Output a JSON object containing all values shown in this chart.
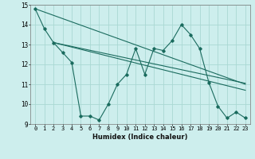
{
  "xlabel": "Humidex (Indice chaleur)",
  "background_color": "#cdeeed",
  "line_color": "#1a6b5e",
  "grid_color": "#aad8d3",
  "xlim": [
    -0.5,
    23.5
  ],
  "ylim": [
    9,
    15
  ],
  "yticks": [
    9,
    10,
    11,
    12,
    13,
    14,
    15
  ],
  "xticks": [
    0,
    1,
    2,
    3,
    4,
    5,
    6,
    7,
    8,
    9,
    10,
    11,
    12,
    13,
    14,
    15,
    16,
    17,
    18,
    19,
    20,
    21,
    22,
    23
  ],
  "main_y": [
    14.8,
    13.8,
    13.1,
    12.6,
    12.1,
    9.4,
    9.4,
    9.2,
    10.0,
    11.0,
    11.5,
    12.8,
    11.5,
    12.8,
    12.7,
    13.2,
    14.0,
    13.5,
    12.8,
    11.1,
    9.9,
    9.3,
    9.6,
    9.3
  ],
  "line1_x": [
    0,
    23
  ],
  "line1_y": [
    14.8,
    11.0
  ],
  "line2_x": [
    2,
    23
  ],
  "line2_y": [
    13.1,
    11.05
  ],
  "line3_x": [
    2,
    23
  ],
  "line3_y": [
    13.1,
    10.7
  ]
}
